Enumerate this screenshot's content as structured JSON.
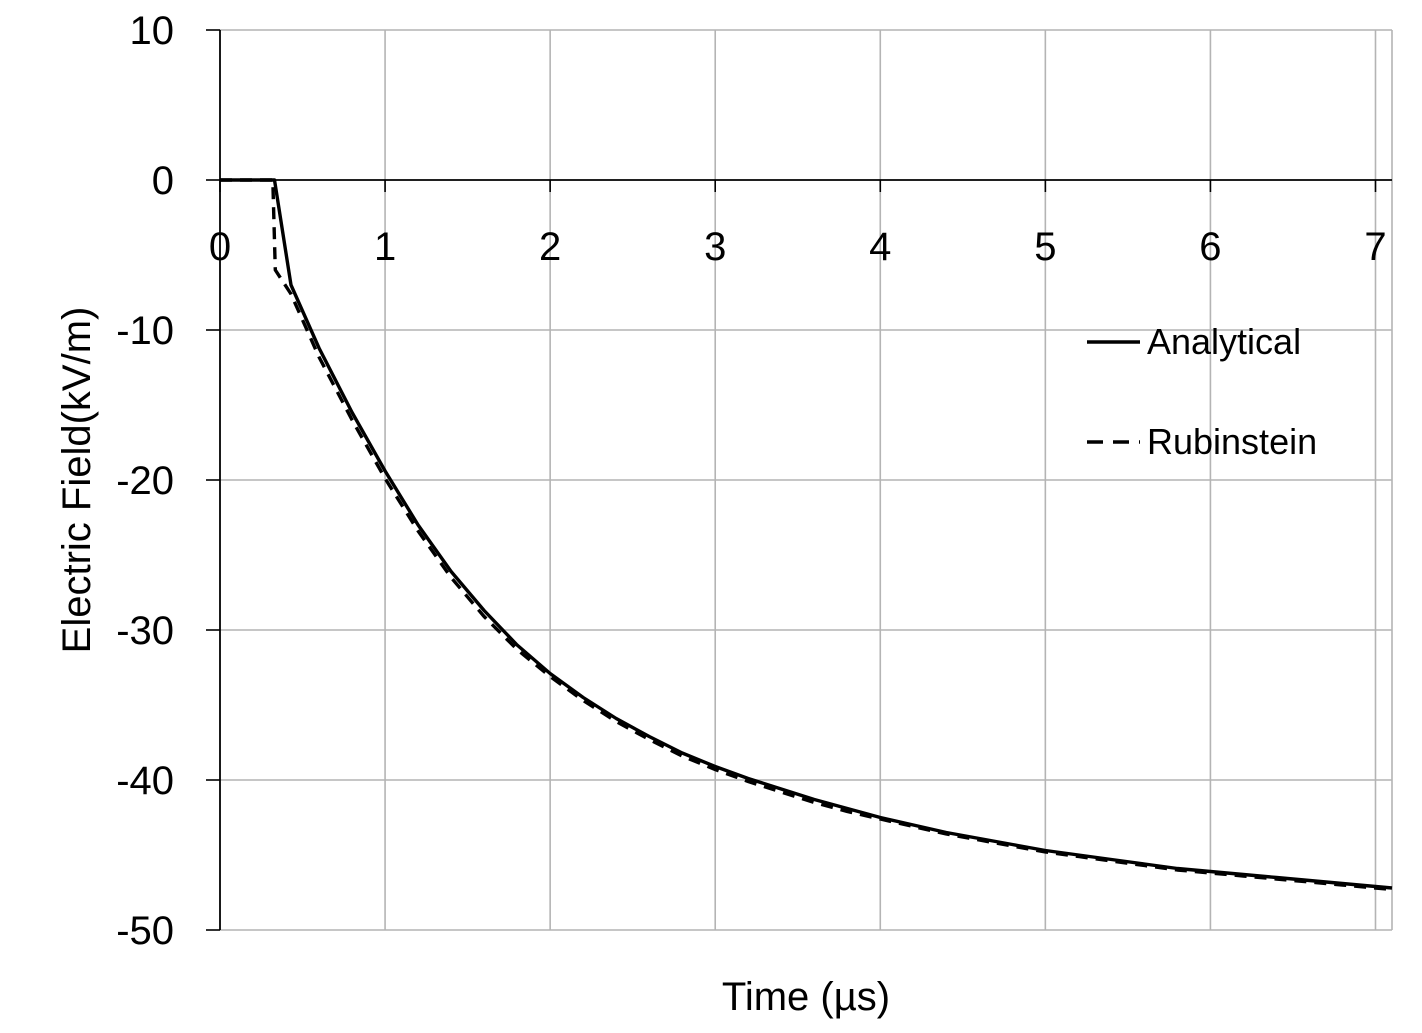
{
  "chart_data": {
    "type": "line",
    "title": "",
    "xlabel": "Time (µs)",
    "ylabel": "Electric Field(kV/m)",
    "xlim": [
      0,
      7.1
    ],
    "ylim": [
      -50,
      10
    ],
    "x_ticks": [
      0,
      1,
      2,
      3,
      4,
      5,
      6,
      7
    ],
    "y_ticks": [
      10,
      0,
      -10,
      -20,
      -30,
      -40,
      -50
    ],
    "grid": true,
    "legend_position": "right",
    "colors": {
      "grid": "#b4b4b4",
      "axis": "#000000",
      "series": "#000000"
    },
    "series": [
      {
        "name": "Analytical",
        "style": "solid",
        "x": [
          0,
          0.33,
          0.43,
          0.6,
          0.8,
          1.0,
          1.2,
          1.4,
          1.6,
          1.8,
          2.0,
          2.2,
          2.4,
          2.6,
          2.8,
          3.0,
          3.2,
          3.4,
          3.6,
          3.8,
          4.0,
          4.2,
          4.4,
          4.6,
          4.8,
          5.0,
          5.2,
          5.4,
          5.6,
          5.8,
          6.0,
          6.2,
          6.4,
          6.6,
          6.8,
          7.0,
          7.1
        ],
        "y": [
          0,
          0,
          -7.0,
          -11.2,
          -15.5,
          -19.4,
          -23.0,
          -26.1,
          -28.7,
          -31.0,
          -32.9,
          -34.5,
          -35.9,
          -37.1,
          -38.2,
          -39.1,
          -39.9,
          -40.6,
          -41.3,
          -41.9,
          -42.5,
          -43.0,
          -43.5,
          -43.9,
          -44.3,
          -44.7,
          -45.0,
          -45.3,
          -45.6,
          -45.9,
          -46.1,
          -46.3,
          -46.5,
          -46.7,
          -46.9,
          -47.1,
          -47.2
        ]
      },
      {
        "name": "Rubinstein",
        "style": "dashed",
        "x": [
          0,
          0.32,
          0.335,
          0.43,
          0.6,
          0.8,
          1.0,
          1.2,
          1.4,
          1.6,
          1.8,
          2.0,
          2.2,
          2.4,
          2.6,
          2.8,
          3.0,
          3.2,
          3.4,
          3.6,
          3.8,
          4.0,
          4.2,
          4.4,
          4.6,
          4.8,
          5.0,
          5.2,
          5.4,
          5.6,
          5.8,
          6.0,
          6.2,
          6.4,
          6.6,
          6.8,
          7.0,
          7.1
        ],
        "y": [
          0,
          0,
          -6.0,
          -7.6,
          -11.8,
          -16.0,
          -19.9,
          -23.4,
          -26.5,
          -29.1,
          -31.3,
          -33.1,
          -34.7,
          -36.1,
          -37.3,
          -38.4,
          -39.3,
          -40.1,
          -40.8,
          -41.5,
          -42.1,
          -42.6,
          -43.1,
          -43.6,
          -44.0,
          -44.4,
          -44.8,
          -45.1,
          -45.4,
          -45.7,
          -46.0,
          -46.2,
          -46.4,
          -46.6,
          -46.8,
          -47.0,
          -47.2,
          -47.3
        ]
      }
    ]
  }
}
